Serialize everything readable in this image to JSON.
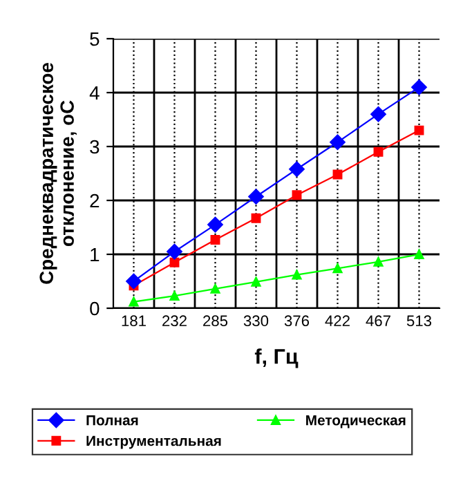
{
  "chart_data": {
    "type": "line",
    "xlabel": "f, Гц",
    "ylabel": "Среднеквадратическое\nотклонение, оС",
    "categories": [
      "181",
      "232",
      "285",
      "330",
      "376",
      "422",
      "467",
      "513"
    ],
    "series": [
      {
        "name": "Полная",
        "color": "#0000ff",
        "marker": "diamond",
        "values": [
          0.5,
          1.05,
          1.55,
          2.07,
          2.58,
          3.08,
          3.6,
          4.1
        ]
      },
      {
        "name": "Инструментальная",
        "color": "#ff0000",
        "marker": "square",
        "values": [
          0.42,
          0.85,
          1.27,
          1.67,
          2.1,
          2.48,
          2.9,
          3.3
        ]
      },
      {
        "name": "Методическая",
        "color": "#00ff00",
        "marker": "triangle",
        "values": [
          0.12,
          0.23,
          0.36,
          0.49,
          0.62,
          0.74,
          0.86,
          1.0
        ]
      }
    ],
    "ylim": [
      0,
      5
    ],
    "yticks": [
      0,
      1,
      2,
      3,
      4,
      5
    ],
    "grid": true,
    "legend": "bottom",
    "line_style": "solid"
  }
}
